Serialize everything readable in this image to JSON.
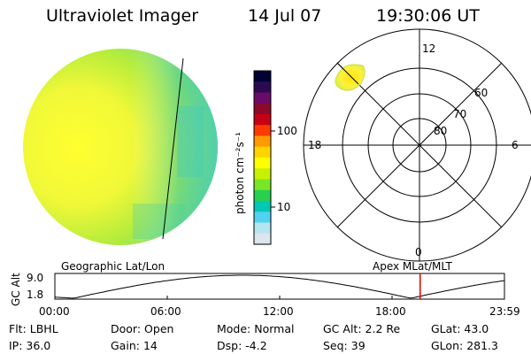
{
  "header": {
    "instrument": "Ultraviolet Imager",
    "date": "14 Jul 07",
    "time": "19:30:06 UT"
  },
  "colorbar": {
    "unit_label": "photon cm⁻²s⁻¹",
    "ticks": [
      "100",
      "10"
    ],
    "colors": [
      "#000033",
      "#2b0a52",
      "#6a0a6a",
      "#8b0a2a",
      "#c80014",
      "#ff3a00",
      "#ff9a00",
      "#ffd400",
      "#ffff00",
      "#c8f000",
      "#78e628",
      "#28d050",
      "#00c8b4",
      "#50d2f0",
      "#b4e6f0",
      "#dce6ec"
    ]
  },
  "polar_grid": {
    "mlt_labels": [
      "12",
      "6",
      "0",
      "18"
    ],
    "mlat_labels": [
      "60",
      "70",
      "80"
    ]
  },
  "left_map_label": "Geographic Lat/Lon",
  "right_map_label": "Apex MLat/MLT",
  "altitude_plot": {
    "ylabel": "GC Alt",
    "ymax_label": "9.0",
    "ymin_label": "1.8",
    "x_ticks": [
      "00:00",
      "06:00",
      "12:00",
      "18:00",
      "23:59"
    ],
    "current_time_hours": 19.5
  },
  "footer": [
    {
      "label": "Flt:",
      "value": "LBHL"
    },
    {
      "label": "Door:",
      "value": "Open"
    },
    {
      "label": "Mode:",
      "value": "Normal"
    },
    {
      "label": "GC Alt:",
      "value": "2.2 Re"
    },
    {
      "label": "GLat:",
      "value": "43.0"
    },
    {
      "label": "IP:",
      "value": "36.0"
    },
    {
      "label": "Gain:",
      "value": "14"
    },
    {
      "label": "Dsp:",
      "value": "-4.2"
    },
    {
      "label": "Seq:",
      "value": "39"
    },
    {
      "label": "GLon:",
      "value": "281.3"
    }
  ]
}
